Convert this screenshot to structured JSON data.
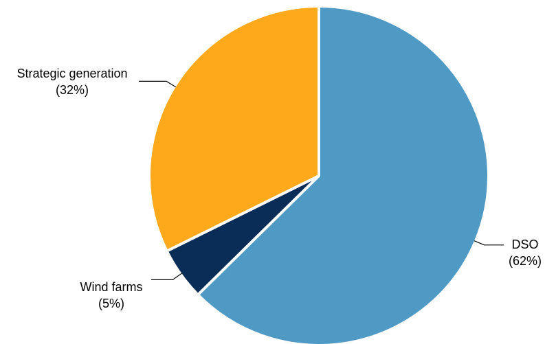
{
  "chart_data": {
    "type": "pie",
    "title": "",
    "slices": [
      {
        "name": "DSO",
        "value": 62,
        "display": "(62%)",
        "color": "#4f9ac4"
      },
      {
        "name": "Wind farms",
        "value": 5,
        "display": "(5%)",
        "color": "#0a2d57"
      },
      {
        "name": "Strategic generation",
        "value": 32,
        "display": "(32%)",
        "color": "#fda91b"
      }
    ],
    "start": "12 o'clock",
    "direction": "clockwise",
    "legend": "none (direct labels with leader lines)"
  }
}
